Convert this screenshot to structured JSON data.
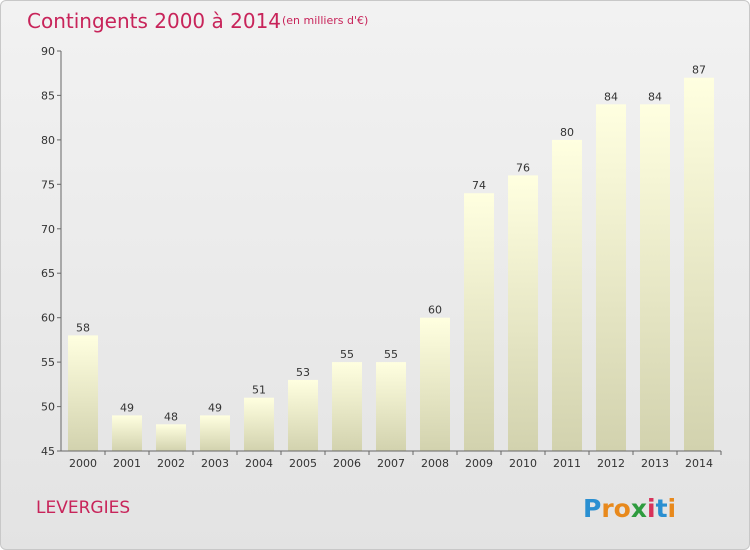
{
  "title": "Contingents 2000 à 2014",
  "unit": "(en milliers d'€)",
  "commune": "LEVERGIES",
  "brand": {
    "letters": [
      "P",
      "r",
      "o",
      "x",
      "i",
      "t",
      "i"
    ],
    "colors": [
      "#2a8fd1",
      "#e8891c",
      "#e8891c",
      "#2e9b3e",
      "#d8325a",
      "#2a8fd1",
      "#e8891c"
    ]
  },
  "colors": {
    "title": "#c8245a",
    "bar_top": "#ffffe0",
    "bar_bottom": "#d2d2ae",
    "axis": "#666666"
  },
  "chart_data": {
    "type": "bar",
    "categories": [
      "2000",
      "2001",
      "2002",
      "2003",
      "2004",
      "2005",
      "2006",
      "2007",
      "2008",
      "2009",
      "2010",
      "2011",
      "2012",
      "2013",
      "2014"
    ],
    "values": [
      58,
      49,
      48,
      49,
      51,
      53,
      55,
      55,
      60,
      74,
      76,
      80,
      84,
      84,
      87
    ],
    "ylim": [
      45,
      90
    ],
    "yticks": [
      45,
      50,
      55,
      60,
      65,
      70,
      75,
      80,
      85,
      90
    ],
    "grid": false,
    "data_labels": true
  }
}
